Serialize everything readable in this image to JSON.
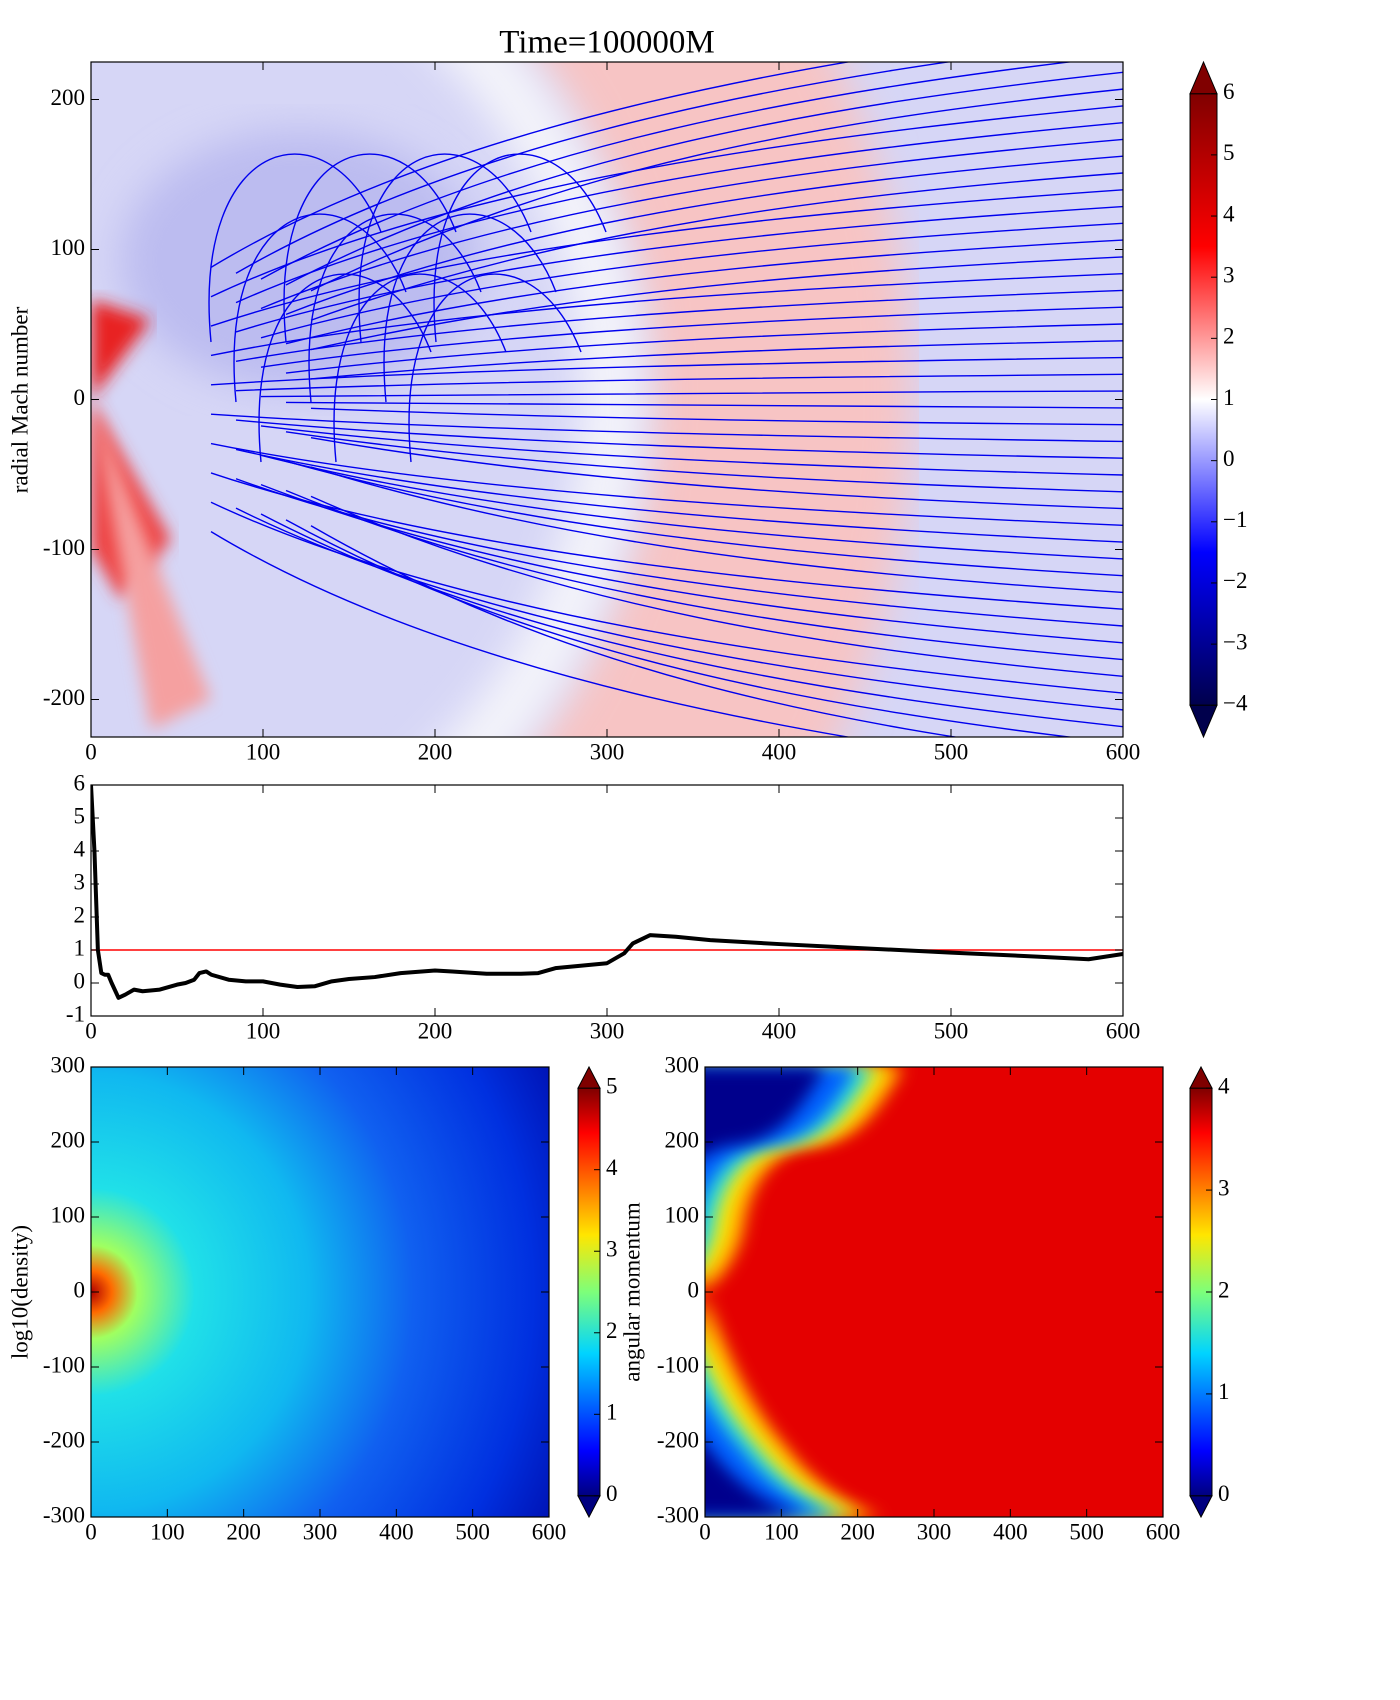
{
  "chart_data": [
    {
      "type": "heatmap",
      "title": "Time=100000M",
      "y_label": "radial Mach number",
      "xlim": [
        0,
        600
      ],
      "ylim": [
        -225,
        225
      ],
      "xticks": [
        0,
        100,
        200,
        300,
        400,
        500,
        600
      ],
      "yticks": [
        -200,
        -100,
        0,
        100,
        200
      ],
      "colorbar": {
        "colormap": "seismic",
        "clim": [
          -4,
          6
        ],
        "ticks": [
          {
            "value": -4,
            "label": "−4"
          },
          {
            "value": -3,
            "label": "−3"
          },
          {
            "value": -2,
            "label": "−2"
          },
          {
            "value": -1,
            "label": "−1"
          },
          0,
          1,
          2,
          3,
          4,
          5,
          6
        ]
      },
      "streamlines": true,
      "streamline_color": "#0000ee"
    },
    {
      "type": "line",
      "xlim": [
        0,
        600
      ],
      "ylim": [
        -1,
        6
      ],
      "xticks": [
        0,
        100,
        200,
        300,
        400,
        500,
        600
      ],
      "yticks": [
        -1,
        0,
        1,
        2,
        3,
        4,
        5,
        6
      ],
      "x": [
        0,
        2,
        4,
        6,
        8,
        10,
        12,
        16,
        20,
        25,
        30,
        40,
        50,
        55,
        60,
        63,
        67,
        70,
        80,
        90,
        100,
        110,
        120,
        130,
        140,
        150,
        165,
        180,
        200,
        210,
        230,
        250,
        260,
        270,
        280,
        290,
        300,
        310,
        315,
        325,
        340,
        360,
        400,
        450,
        500,
        550,
        580,
        600
      ],
      "series": [
        {
          "color": "#000000",
          "values": [
            6,
            4,
            1,
            0.3,
            0.25,
            0.25,
            0.0,
            -0.45,
            -0.35,
            -0.2,
            -0.25,
            -0.2,
            -0.05,
            0.0,
            0.1,
            0.3,
            0.35,
            0.25,
            0.1,
            0.05,
            0.05,
            -0.05,
            -0.12,
            -0.1,
            0.05,
            0.12,
            0.18,
            0.3,
            0.38,
            0.35,
            0.28,
            0.28,
            0.3,
            0.45,
            0.5,
            0.55,
            0.6,
            0.9,
            1.2,
            1.45,
            1.4,
            1.3,
            1.18,
            1.05,
            0.92,
            0.8,
            0.72,
            0.88
          ]
        }
      ],
      "reference_line": {
        "value": 1,
        "color": "#ff0000"
      }
    },
    {
      "type": "heatmap",
      "y_label": "log10(density)",
      "xlim": [
        0,
        600
      ],
      "ylim": [
        -300,
        300
      ],
      "xticks": [
        0,
        100,
        200,
        300,
        400,
        500,
        600
      ],
      "yticks": [
        -300,
        -200,
        -100,
        0,
        100,
        200,
        300
      ],
      "colorbar": {
        "colormap": "jet",
        "clim": [
          0,
          5
        ],
        "label": "angular momentum",
        "ticks": [
          0,
          1,
          2,
          3,
          4,
          5
        ]
      }
    },
    {
      "type": "heatmap",
      "xlim": [
        0,
        600
      ],
      "ylim": [
        -300,
        300
      ],
      "xticks": [
        0,
        100,
        200,
        300,
        400,
        500,
        600
      ],
      "yticks": [
        -300,
        -200,
        -100,
        0,
        100,
        200,
        300
      ],
      "colorbar": {
        "colormap": "jet",
        "clim": [
          0,
          4
        ],
        "ticks": [
          0,
          1,
          2,
          3,
          4
        ]
      }
    }
  ]
}
